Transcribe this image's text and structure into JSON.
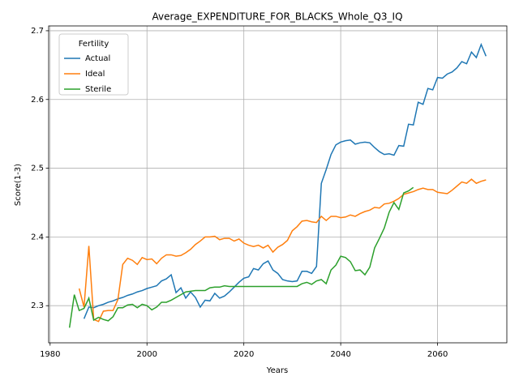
{
  "chart_data": {
    "type": "line",
    "title": "Average_EXPENDITURE_FOR_BLACKS_Whole_Q3_IQ",
    "x_label": "Years",
    "y_label": "Score(1-3)",
    "legend_title": "Fertility",
    "legend": "upper left",
    "grid": true,
    "xlim": [
      1979.7,
      2074.3
    ],
    "xticks": [
      1980,
      2000,
      2020,
      2040,
      2060
    ],
    "ylim": [
      2.246,
      2.707
    ],
    "yticks": [
      2.3,
      2.4,
      2.5,
      2.6,
      2.7
    ],
    "x": [
      1984,
      1985,
      1986,
      1987,
      1988,
      1989,
      1990,
      1991,
      1992,
      1993,
      1994,
      1995,
      1996,
      1997,
      1998,
      1999,
      2000,
      2001,
      2002,
      2003,
      2004,
      2005,
      2006,
      2007,
      2008,
      2009,
      2010,
      2011,
      2012,
      2013,
      2014,
      2015,
      2016,
      2017,
      2018,
      2019,
      2020,
      2021,
      2022,
      2023,
      2024,
      2025,
      2026,
      2027,
      2028,
      2029,
      2030,
      2031,
      2032,
      2033,
      2034,
      2035,
      2036,
      2037,
      2038,
      2039,
      2040,
      2041,
      2042,
      2043,
      2044,
      2045,
      2046,
      2047,
      2048,
      2049,
      2050,
      2051,
      2052,
      2053,
      2054,
      2055,
      2056,
      2057,
      2058,
      2059,
      2060,
      2061,
      2062,
      2063,
      2064,
      2065,
      2066,
      2067,
      2068,
      2069,
      2070
    ],
    "series": [
      {
        "name": "Actual",
        "color": "#1f77b4",
        "values": [
          null,
          null,
          null,
          2.281,
          2.298,
          2.297,
          2.3,
          2.302,
          2.305,
          2.307,
          2.31,
          2.312,
          2.315,
          2.317,
          2.32,
          2.322,
          2.325,
          2.327,
          2.329,
          2.336,
          2.339,
          2.345,
          2.319,
          2.326,
          2.311,
          2.32,
          2.312,
          2.298,
          2.308,
          2.307,
          2.318,
          2.311,
          2.314,
          2.32,
          2.327,
          2.334,
          2.34,
          2.342,
          2.354,
          2.352,
          2.361,
          2.365,
          2.352,
          2.347,
          2.338,
          2.336,
          2.335,
          2.336,
          2.35,
          2.35,
          2.347,
          2.357,
          2.478,
          2.498,
          2.52,
          2.534,
          2.538,
          2.54,
          2.541,
          2.535,
          2.537,
          2.538,
          2.537,
          2.53,
          2.524,
          2.52,
          2.521,
          2.519,
          2.533,
          2.532,
          2.564,
          2.563,
          2.596,
          2.593,
          2.616,
          2.614,
          2.632,
          2.631,
          2.637,
          2.64,
          2.646,
          2.655,
          2.652,
          2.669,
          2.661,
          2.68,
          2.663
        ]
      },
      {
        "name": "Ideal",
        "color": "#ff7f0e",
        "values": [
          null,
          null,
          2.325,
          2.298,
          2.387,
          2.28,
          2.277,
          2.292,
          2.293,
          2.293,
          2.309,
          2.36,
          2.369,
          2.366,
          2.36,
          2.37,
          2.367,
          2.368,
          2.361,
          2.369,
          2.374,
          2.374,
          2.372,
          2.373,
          2.377,
          2.382,
          2.389,
          2.394,
          2.4,
          2.4,
          2.401,
          2.396,
          2.398,
          2.398,
          2.394,
          2.397,
          2.391,
          2.388,
          2.386,
          2.388,
          2.384,
          2.388,
          2.378,
          2.385,
          2.389,
          2.395,
          2.409,
          2.415,
          2.423,
          2.424,
          2.422,
          2.421,
          2.43,
          2.424,
          2.43,
          2.43,
          2.428,
          2.429,
          2.432,
          2.43,
          2.434,
          2.437,
          2.439,
          2.443,
          2.442,
          2.448,
          2.449,
          2.452,
          2.456,
          2.462,
          2.464,
          2.466,
          2.469,
          2.471,
          2.469,
          2.469,
          2.465,
          2.464,
          2.463,
          2.468,
          2.474,
          2.48,
          2.478,
          2.484,
          2.478,
          2.481,
          2.483
        ]
      },
      {
        "name": "Sterile",
        "color": "#2ca02c",
        "values": [
          2.268,
          2.316,
          2.293,
          2.296,
          2.311,
          2.279,
          2.283,
          2.28,
          2.278,
          2.284,
          2.297,
          2.297,
          2.301,
          2.302,
          2.297,
          2.302,
          2.3,
          2.294,
          2.298,
          2.305,
          2.305,
          2.308,
          2.312,
          2.316,
          2.32,
          2.321,
          2.322,
          2.322,
          2.322,
          2.326,
          2.327,
          2.327,
          2.329,
          2.328,
          2.328,
          2.328,
          2.328,
          2.328,
          2.328,
          2.328,
          2.328,
          2.328,
          2.328,
          2.328,
          2.328,
          2.328,
          2.328,
          2.328,
          2.332,
          2.334,
          2.331,
          2.336,
          2.338,
          2.332,
          2.352,
          2.359,
          2.372,
          2.37,
          2.364,
          2.351,
          2.352,
          2.345,
          2.356,
          2.384,
          2.398,
          2.413,
          2.436,
          2.45,
          2.44,
          2.464,
          2.467,
          2.472,
          null,
          null,
          null,
          null,
          null,
          null,
          null,
          null,
          null,
          null,
          null,
          null,
          null,
          null,
          null
        ]
      }
    ]
  }
}
